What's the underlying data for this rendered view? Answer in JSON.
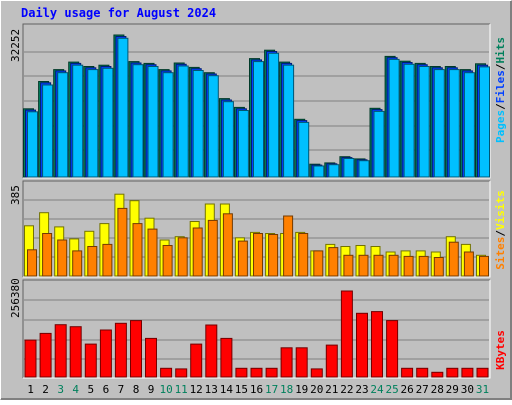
{
  "title": "Daily usage for August 2024",
  "colors": {
    "background": "#c0c0c0",
    "title": "#0000ff",
    "hits": "#00805c",
    "files": "#0040ff",
    "pages": "#00c0ff",
    "visits": "#ffff00",
    "sites": "#ff8000",
    "kbytes": "#ff0000",
    "weekend_label": "#00805c",
    "weekday_label": "#000000",
    "gridline": "#808080"
  },
  "chart_data": [
    {
      "type": "bar",
      "panel": "hits-files-pages",
      "axis_label_max": "32252",
      "ylim": [
        0,
        32252
      ],
      "grid": true,
      "legend": [
        {
          "name": "Pages",
          "color_key": "pages"
        },
        {
          "name": "Files",
          "color_key": "files"
        },
        {
          "name": "Hits",
          "color_key": "hits"
        }
      ],
      "categories": [
        "1",
        "2",
        "3",
        "4",
        "5",
        "6",
        "7",
        "8",
        "9",
        "10",
        "11",
        "12",
        "13",
        "14",
        "15",
        "16",
        "17",
        "18",
        "19",
        "20",
        "21",
        "22",
        "23",
        "24",
        "25",
        "26",
        "27",
        "28",
        "29",
        "30",
        "31"
      ],
      "series": [
        {
          "name": "Hits",
          "color_key": "hits",
          "values": [
            15500,
            21700,
            24400,
            26100,
            25100,
            25400,
            32252,
            26200,
            25800,
            24400,
            25900,
            24900,
            23700,
            17800,
            15800,
            26900,
            28800,
            26100,
            13100,
            2900,
            3200,
            4600,
            4100,
            15600,
            27400,
            26300,
            25800,
            25100,
            25100,
            24400,
            25700
          ]
        },
        {
          "name": "Files",
          "color_key": "files",
          "values": [
            15200,
            21400,
            24100,
            25800,
            24800,
            25100,
            31900,
            25900,
            25500,
            24100,
            25600,
            24600,
            23400,
            17500,
            15500,
            26600,
            28500,
            25800,
            12800,
            2700,
            3000,
            4400,
            3900,
            15300,
            27100,
            26000,
            25500,
            24800,
            24800,
            24100,
            25400
          ]
        },
        {
          "name": "Pages",
          "color_key": "pages",
          "values": [
            14800,
            20900,
            23700,
            25400,
            24400,
            24700,
            31500,
            25500,
            25100,
            23700,
            25200,
            24200,
            23000,
            17100,
            15100,
            26200,
            28100,
            25400,
            12400,
            2500,
            2800,
            4200,
            3700,
            14900,
            26700,
            25600,
            25100,
            24400,
            24400,
            23700,
            25000
          ]
        }
      ]
    },
    {
      "type": "bar",
      "panel": "visits-sites",
      "axis_label_max": "385",
      "ylim": [
        0,
        385
      ],
      "grid": true,
      "legend": [
        {
          "name": "Sites",
          "color_key": "sites"
        },
        {
          "name": "Visits",
          "color_key": "visits"
        }
      ],
      "categories": [
        "1",
        "2",
        "3",
        "4",
        "5",
        "6",
        "7",
        "8",
        "9",
        "10",
        "11",
        "12",
        "13",
        "14",
        "15",
        "16",
        "17",
        "18",
        "19",
        "20",
        "21",
        "22",
        "23",
        "24",
        "25",
        "26",
        "27",
        "28",
        "29",
        "30",
        "31"
      ],
      "series": [
        {
          "name": "Visits",
          "color_key": "visits",
          "values": [
            230,
            290,
            225,
            170,
            205,
            240,
            375,
            345,
            265,
            165,
            180,
            250,
            330,
            330,
            175,
            200,
            195,
            195,
            200,
            115,
            145,
            135,
            140,
            135,
            110,
            115,
            115,
            110,
            180,
            145,
            95
          ]
        },
        {
          "name": "Sites",
          "color_key": "sites",
          "values": [
            120,
            195,
            165,
            115,
            135,
            145,
            310,
            240,
            215,
            140,
            175,
            220,
            255,
            285,
            160,
            195,
            190,
            275,
            195,
            115,
            130,
            95,
            95,
            95,
            95,
            90,
            90,
            85,
            155,
            110,
            90
          ]
        }
      ]
    },
    {
      "type": "bar",
      "panel": "kbytes",
      "axis_label_max": "256380",
      "ylim": [
        0,
        256380
      ],
      "grid": true,
      "legend": [
        {
          "name": "KBytes",
          "color_key": "kbytes"
        }
      ],
      "categories": [
        "1",
        "2",
        "3",
        "4",
        "5",
        "6",
        "7",
        "8",
        "9",
        "10",
        "11",
        "12",
        "13",
        "14",
        "15",
        "16",
        "17",
        "18",
        "19",
        "20",
        "21",
        "22",
        "23",
        "24",
        "25",
        "26",
        "27",
        "28",
        "29",
        "30",
        "31"
      ],
      "series": [
        {
          "name": "KBytes",
          "color_key": "kbytes",
          "values": [
            110000,
            130000,
            156000,
            150000,
            98000,
            140000,
            160000,
            168000,
            115000,
            26000,
            24000,
            98000,
            155000,
            115000,
            26000,
            26000,
            26000,
            87000,
            87000,
            24000,
            95000,
            256380,
            190000,
            195000,
            168000,
            26000,
            26000,
            14000,
            26000,
            26000,
            26000
          ]
        }
      ]
    }
  ],
  "day_labels": [
    {
      "text": "1",
      "weekend": false
    },
    {
      "text": "2",
      "weekend": false
    },
    {
      "text": "3",
      "weekend": true
    },
    {
      "text": "4",
      "weekend": true
    },
    {
      "text": "5",
      "weekend": false
    },
    {
      "text": "6",
      "weekend": false
    },
    {
      "text": "7",
      "weekend": false
    },
    {
      "text": "8",
      "weekend": false
    },
    {
      "text": "9",
      "weekend": false
    },
    {
      "text": "10",
      "weekend": true
    },
    {
      "text": "11",
      "weekend": true
    },
    {
      "text": "12",
      "weekend": false
    },
    {
      "text": "13",
      "weekend": false
    },
    {
      "text": "14",
      "weekend": false
    },
    {
      "text": "15",
      "weekend": false
    },
    {
      "text": "16",
      "weekend": false
    },
    {
      "text": "17",
      "weekend": true
    },
    {
      "text": "18",
      "weekend": true
    },
    {
      "text": "19",
      "weekend": false
    },
    {
      "text": "20",
      "weekend": false
    },
    {
      "text": "21",
      "weekend": false
    },
    {
      "text": "22",
      "weekend": false
    },
    {
      "text": "23",
      "weekend": false
    },
    {
      "text": "24",
      "weekend": true
    },
    {
      "text": "25",
      "weekend": true
    },
    {
      "text": "26",
      "weekend": false
    },
    {
      "text": "27",
      "weekend": false
    },
    {
      "text": "28",
      "weekend": false
    },
    {
      "text": "29",
      "weekend": false
    },
    {
      "text": "30",
      "weekend": false
    },
    {
      "text": "31",
      "weekend": true
    }
  ]
}
